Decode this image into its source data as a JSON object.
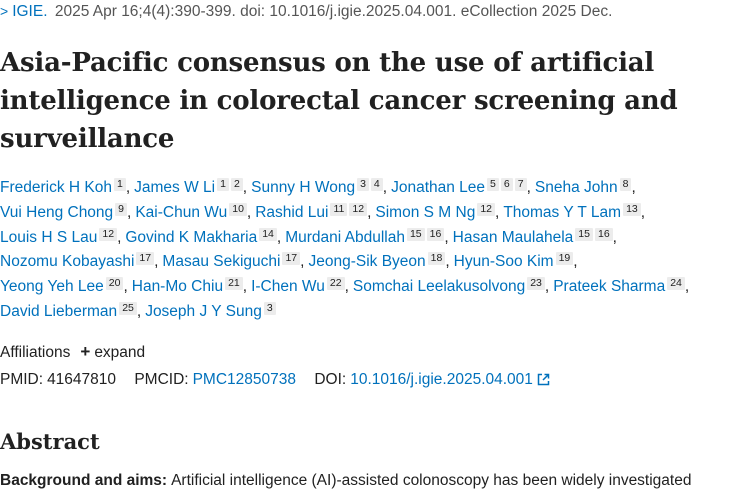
{
  "citation": {
    "chevron": ">",
    "journal": "IGIE.",
    "details": "2025 Apr 16;4(4):390-399. doi: 10.1016/j.igie.2025.04.001. eCollection 2025 Dec."
  },
  "title": "Asia-Pacific consensus on the use of artificial intelligence in colorectal cancer screening and surveillance",
  "authors": {
    "lines": [
      [
        {
          "name": "Frederick H Koh",
          "aff": [
            "1"
          ]
        },
        {
          "name": "James W Li",
          "aff": [
            "1",
            "2"
          ]
        },
        {
          "name": "Sunny H Wong",
          "aff": [
            "3",
            "4"
          ]
        },
        {
          "name": "Jonathan Lee",
          "aff": [
            "5",
            "6",
            "7"
          ]
        },
        {
          "name": "Sneha John",
          "aff": [
            "8"
          ]
        }
      ],
      [
        {
          "name": "Vui Heng Chong",
          "aff": [
            "9"
          ]
        },
        {
          "name": "Kai-Chun Wu",
          "aff": [
            "10"
          ]
        },
        {
          "name": "Rashid Lui",
          "aff": [
            "11",
            "12"
          ]
        },
        {
          "name": "Simon S M Ng",
          "aff": [
            "12"
          ]
        },
        {
          "name": "Thomas Y T Lam",
          "aff": [
            "13"
          ]
        }
      ],
      [
        {
          "name": "Louis H S Lau",
          "aff": [
            "12"
          ]
        },
        {
          "name": "Govind K Makharia",
          "aff": [
            "14"
          ]
        },
        {
          "name": "Murdani Abdullah",
          "aff": [
            "15",
            "16"
          ]
        },
        {
          "name": "Hasan Maulahela",
          "aff": [
            "15",
            "16"
          ]
        }
      ],
      [
        {
          "name": "Nozomu Kobayashi",
          "aff": [
            "17"
          ]
        },
        {
          "name": "Masau Sekiguchi",
          "aff": [
            "17"
          ]
        },
        {
          "name": "Jeong-Sik Byeon",
          "aff": [
            "18"
          ]
        },
        {
          "name": "Hyun-Soo Kim",
          "aff": [
            "19"
          ]
        }
      ],
      [
        {
          "name": "Yeong Yeh Lee",
          "aff": [
            "20"
          ]
        },
        {
          "name": "Han-Mo Chiu",
          "aff": [
            "21"
          ]
        },
        {
          "name": "I-Chen Wu",
          "aff": [
            "22"
          ]
        },
        {
          "name": "Somchai Leelakusolvong",
          "aff": [
            "23"
          ]
        },
        {
          "name": "Prateek Sharma",
          "aff": [
            "24"
          ]
        }
      ],
      [
        {
          "name": "David Lieberman",
          "aff": [
            "25"
          ]
        },
        {
          "name": "Joseph J Y Sung",
          "aff": [
            "3"
          ]
        }
      ]
    ]
  },
  "affiliations": {
    "label": "Affiliations",
    "expand_label": "expand"
  },
  "ids": {
    "pmid_label": "PMID:",
    "pmid": "41647810",
    "pmcid_label": "PMCID:",
    "pmcid": "PMC12850738",
    "doi_label": "DOI:",
    "doi": "10.1016/j.igie.2025.04.001"
  },
  "abstract": {
    "heading": "Abstract",
    "bg_label": "Background and aims:",
    "bg_text": "Artificial intelligence (AI)-assisted colonoscopy has been widely investigated"
  },
  "colors": {
    "link": "#0071bc",
    "text": "#212121",
    "muted": "#555555",
    "sup_bg": "#ececec"
  }
}
